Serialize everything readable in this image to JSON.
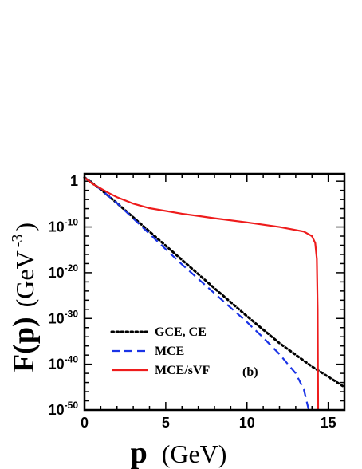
{
  "chart_data": {
    "type": "line",
    "title": "",
    "xlabel": {
      "bold": "p",
      "rest": "(GeV)"
    },
    "ylabel": {
      "bold": "F(p)",
      "rest": "(GeV",
      "sup": "-3",
      "close": ")"
    },
    "xlim": [
      0,
      16
    ],
    "ylim_log10": [
      -50,
      1.6
    ],
    "yscale": "log",
    "x_ticks": [
      {
        "value": 0,
        "label": "0"
      },
      {
        "value": 5,
        "label": "5"
      },
      {
        "value": 10,
        "label": "10"
      },
      {
        "value": 15,
        "label": "15"
      }
    ],
    "y_ticks": [
      {
        "log10": 0,
        "base": "1",
        "exp": ""
      },
      {
        "log10": -10,
        "base": "10",
        "exp": "-10"
      },
      {
        "log10": -20,
        "base": "10",
        "exp": "-20"
      },
      {
        "log10": -30,
        "base": "10",
        "exp": "-30"
      },
      {
        "log10": -40,
        "base": "10",
        "exp": "-40"
      },
      {
        "log10": -50,
        "base": "10",
        "exp": "-50"
      }
    ],
    "annotation": "(b)",
    "legend_position": "bottom-left",
    "series": [
      {
        "name": "GCE, CE",
        "color": "#000000",
        "style": "dotted",
        "points": [
          [
            0,
            0.8
          ],
          [
            1,
            -1.8
          ],
          [
            2,
            -4.8
          ],
          [
            4,
            -11.0
          ],
          [
            6,
            -17.2
          ],
          [
            8,
            -23.4
          ],
          [
            10,
            -29.5
          ],
          [
            12,
            -35.4
          ],
          [
            14,
            -40.5
          ],
          [
            16,
            -45.0
          ]
        ]
      },
      {
        "name": "MCE",
        "color": "#1a33e6",
        "style": "dashed",
        "points": [
          [
            0,
            0.8
          ],
          [
            1,
            -1.8
          ],
          [
            2,
            -4.8
          ],
          [
            4,
            -11.5
          ],
          [
            6,
            -18.2
          ],
          [
            8,
            -24.5
          ],
          [
            10,
            -30.8
          ],
          [
            11,
            -34.2
          ],
          [
            12,
            -37.8
          ],
          [
            13,
            -42.0
          ],
          [
            13.5,
            -45.5
          ],
          [
            13.8,
            -50.0
          ]
        ]
      },
      {
        "name": "MCE/sVF",
        "color": "#ee1c1c",
        "style": "solid",
        "points": [
          [
            0,
            0.8
          ],
          [
            0.5,
            -0.6
          ],
          [
            1,
            -1.6
          ],
          [
            1.5,
            -2.6
          ],
          [
            2,
            -3.5
          ],
          [
            3,
            -4.9
          ],
          [
            4,
            -5.9
          ],
          [
            6,
            -7.1
          ],
          [
            8,
            -8.1
          ],
          [
            10,
            -9.0
          ],
          [
            12,
            -10.0
          ],
          [
            13.5,
            -11.0
          ],
          [
            14.0,
            -12.0
          ],
          [
            14.2,
            -13.5
          ],
          [
            14.3,
            -17.0
          ],
          [
            14.35,
            -28.0
          ],
          [
            14.38,
            -50.0
          ]
        ]
      }
    ]
  }
}
